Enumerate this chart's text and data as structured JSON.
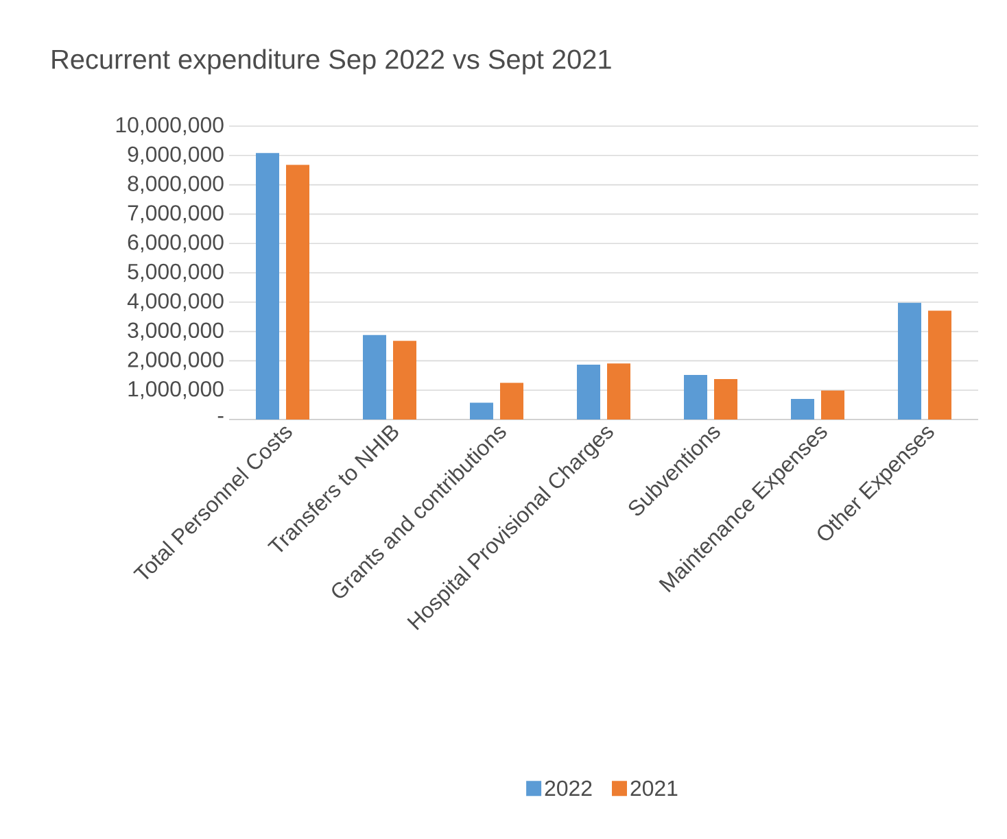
{
  "chart_data": {
    "type": "bar",
    "title": "Recurrent expenditure Sep 2022 vs Sept 2021",
    "categories": [
      "Total Personnel Costs",
      "Transfers to NHIB",
      "Grants and contributions",
      "Hospital Provisional Charges",
      "Subventions",
      "Maintenance Expenses",
      "Other Expenses"
    ],
    "series": [
      {
        "name": "2022",
        "color": "#5b9bd5",
        "values": [
          9080000,
          2880000,
          570000,
          1870000,
          1520000,
          700000,
          3980000
        ]
      },
      {
        "name": "2021",
        "color": "#ed7d31",
        "values": [
          8680000,
          2680000,
          1250000,
          1910000,
          1380000,
          990000,
          3710000
        ]
      }
    ],
    "ylim": [
      0,
      10000000
    ],
    "yticks": [
      {
        "value": 0,
        "label": "-"
      },
      {
        "value": 1000000,
        "label": "1,000,000"
      },
      {
        "value": 2000000,
        "label": "2,000,000"
      },
      {
        "value": 3000000,
        "label": "3,000,000"
      },
      {
        "value": 4000000,
        "label": "4,000,000"
      },
      {
        "value": 5000000,
        "label": "5,000,000"
      },
      {
        "value": 6000000,
        "label": "6,000,000"
      },
      {
        "value": 7000000,
        "label": "7,000,000"
      },
      {
        "value": 8000000,
        "label": "8,000,000"
      },
      {
        "value": 9000000,
        "label": "9,000,000"
      },
      {
        "value": 10000000,
        "label": "10,000,000"
      }
    ],
    "grid": "y",
    "legend": "bottom"
  }
}
